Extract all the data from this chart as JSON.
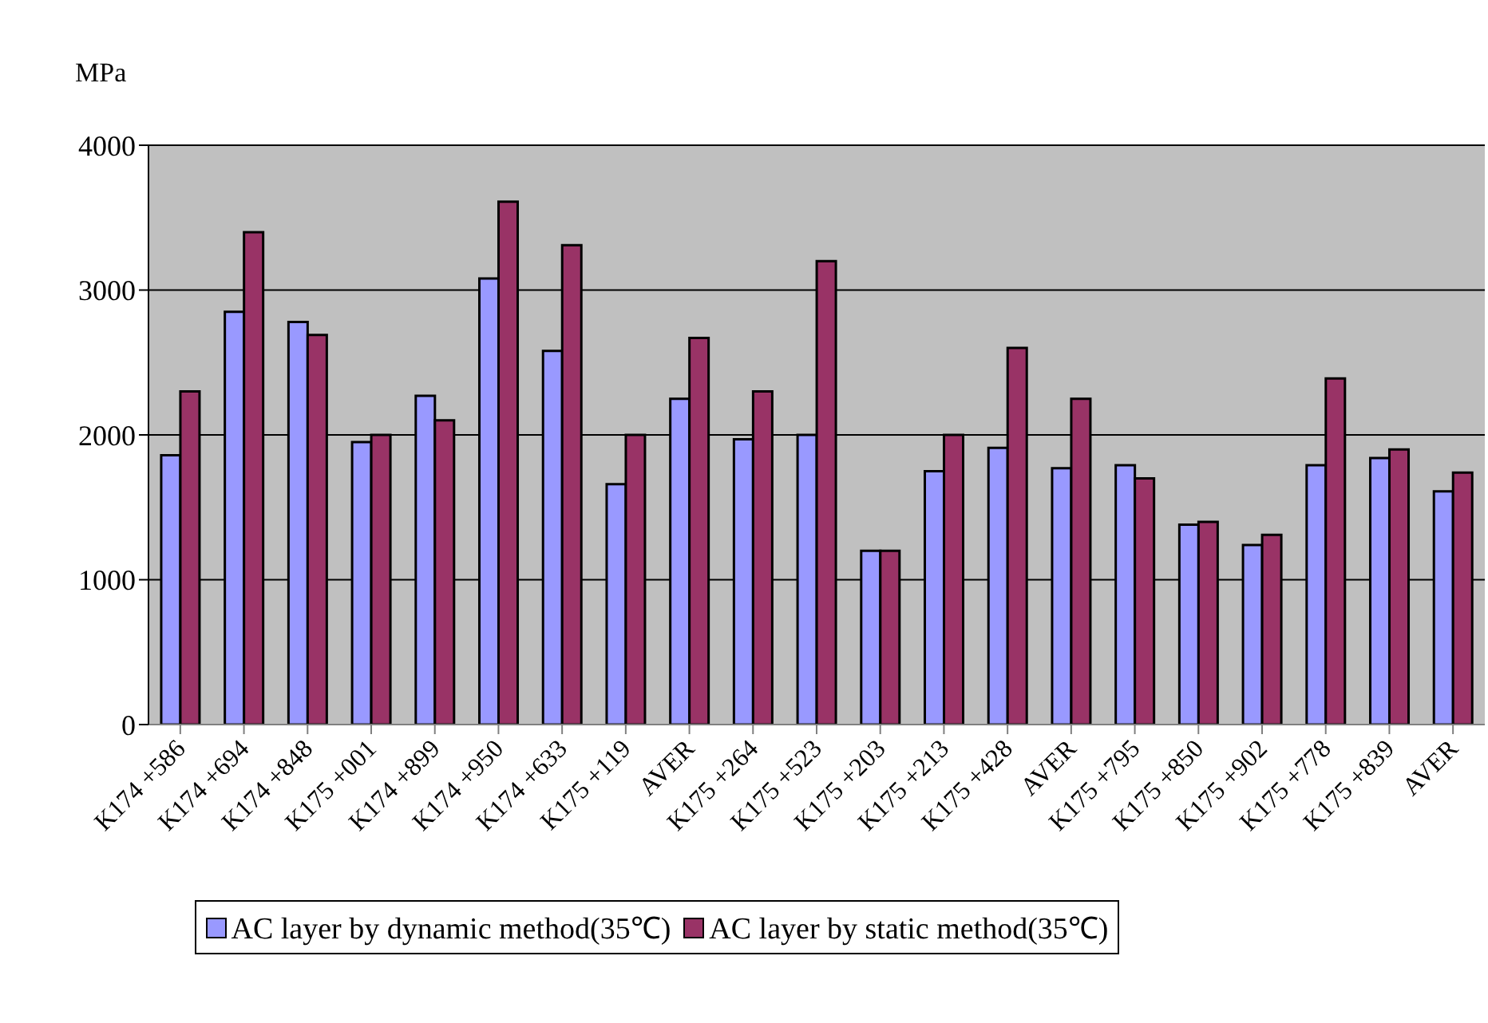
{
  "chart_data": {
    "type": "bar",
    "ylabel": "MPa",
    "categories": [
      "K174 +586",
      "K174 +694",
      "K174 +848",
      "K175 +001",
      "K174 +899",
      "K174 +950",
      "K174 +633",
      "K175 +119",
      "AVER",
      "K175 +264",
      "K175 +523",
      "K175 +203",
      "K175 +213",
      "K175 +428",
      "AVER",
      "K175 +795",
      "K175 +850",
      "K175 +902",
      "K175 +778",
      "K175 +839",
      "AVER"
    ],
    "series": [
      {
        "name": "AC layer by dynamic method(35℃)",
        "color": "#9999ff",
        "values": [
          1860,
          2850,
          2780,
          1950,
          2270,
          3080,
          2580,
          1660,
          2250,
          1970,
          2000,
          1200,
          1750,
          1910,
          1770,
          1790,
          1380,
          1240,
          1790,
          1840,
          1610
        ]
      },
      {
        "name": "AC layer by static method(35℃)",
        "color": "#993366",
        "values": [
          2300,
          3400,
          2690,
          2000,
          2100,
          3610,
          3310,
          2000,
          2670,
          2300,
          3200,
          1200,
          2000,
          2600,
          2250,
          1700,
          1400,
          1310,
          2390,
          1900,
          1740
        ]
      }
    ],
    "ylim": [
      0,
      4000
    ],
    "yticks": [
      0,
      1000,
      2000,
      3000,
      4000
    ],
    "grid": "y",
    "legend": "bottom"
  }
}
